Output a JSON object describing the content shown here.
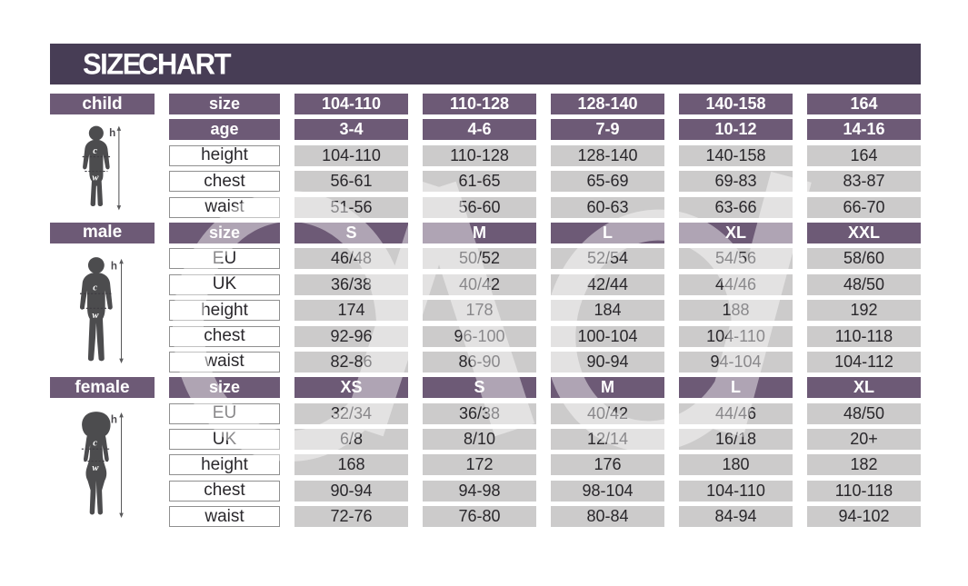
{
  "colors": {
    "banner_dark": "#473d55",
    "band_purple": "#6d5a76",
    "cell_gray": "#cccbcb",
    "silhouette": "#4c4c4e"
  },
  "figure_annotations": {
    "height": "h",
    "chest": "c",
    "waist": "w"
  },
  "chart_data": {
    "type": "table",
    "title": "SIZE CHART",
    "sections": [
      {
        "name": "child",
        "label": "child",
        "rows": [
          {
            "label": "size",
            "style": "band",
            "values": [
              "104-110",
              "110-128",
              "128-140",
              "140-158",
              "164"
            ]
          },
          {
            "label": "age",
            "style": "band",
            "values": [
              "3-4",
              "4-6",
              "7-9",
              "10-12",
              "14-16"
            ]
          },
          {
            "label": "height",
            "style": "plain",
            "values": [
              "104-110",
              "110-128",
              "128-140",
              "140-158",
              "164"
            ]
          },
          {
            "label": "chest",
            "style": "plain",
            "values": [
              "56-61",
              "61-65",
              "65-69",
              "69-83",
              "83-87"
            ]
          },
          {
            "label": "waist",
            "style": "plain",
            "values": [
              "51-56",
              "56-60",
              "60-63",
              "63-66",
              "66-70"
            ]
          }
        ]
      },
      {
        "name": "male",
        "label": "male",
        "rows": [
          {
            "label": "size",
            "style": "band",
            "values": [
              "S",
              "M",
              "L",
              "XL",
              "XXL"
            ]
          },
          {
            "label": "EU",
            "style": "plain",
            "values": [
              "46/48",
              "50/52",
              "52/54",
              "54/56",
              "58/60"
            ]
          },
          {
            "label": "UK",
            "style": "plain",
            "values": [
              "36/38",
              "40/42",
              "42/44",
              "44/46",
              "48/50"
            ]
          },
          {
            "label": "height",
            "style": "plain",
            "values": [
              "174",
              "178",
              "184",
              "188",
              "192"
            ]
          },
          {
            "label": "chest",
            "style": "plain",
            "values": [
              "92-96",
              "96-100",
              "100-104",
              "104-110",
              "110-118"
            ]
          },
          {
            "label": "waist",
            "style": "plain",
            "values": [
              "82-86",
              "86-90",
              "90-94",
              "94-104",
              "104-112"
            ]
          }
        ]
      },
      {
        "name": "female",
        "label": "female",
        "rows": [
          {
            "label": "size",
            "style": "band",
            "values": [
              "XS",
              "S",
              "M",
              "L",
              "XL"
            ]
          },
          {
            "label": "EU",
            "style": "plain",
            "values": [
              "32/34",
              "36/38",
              "40/42",
              "44/46",
              "48/50"
            ]
          },
          {
            "label": "UK",
            "style": "plain",
            "values": [
              "6/8",
              "8/10",
              "12/14",
              "16/18",
              "20+"
            ]
          },
          {
            "label": "height",
            "style": "plain",
            "values": [
              "168",
              "172",
              "176",
              "180",
              "182"
            ]
          },
          {
            "label": "chest",
            "style": "plain",
            "values": [
              "90-94",
              "94-98",
              "98-104",
              "104-110",
              "110-118"
            ]
          },
          {
            "label": "waist",
            "style": "plain",
            "values": [
              "72-76",
              "76-80",
              "80-84",
              "84-94",
              "94-102"
            ]
          }
        ]
      }
    ]
  }
}
